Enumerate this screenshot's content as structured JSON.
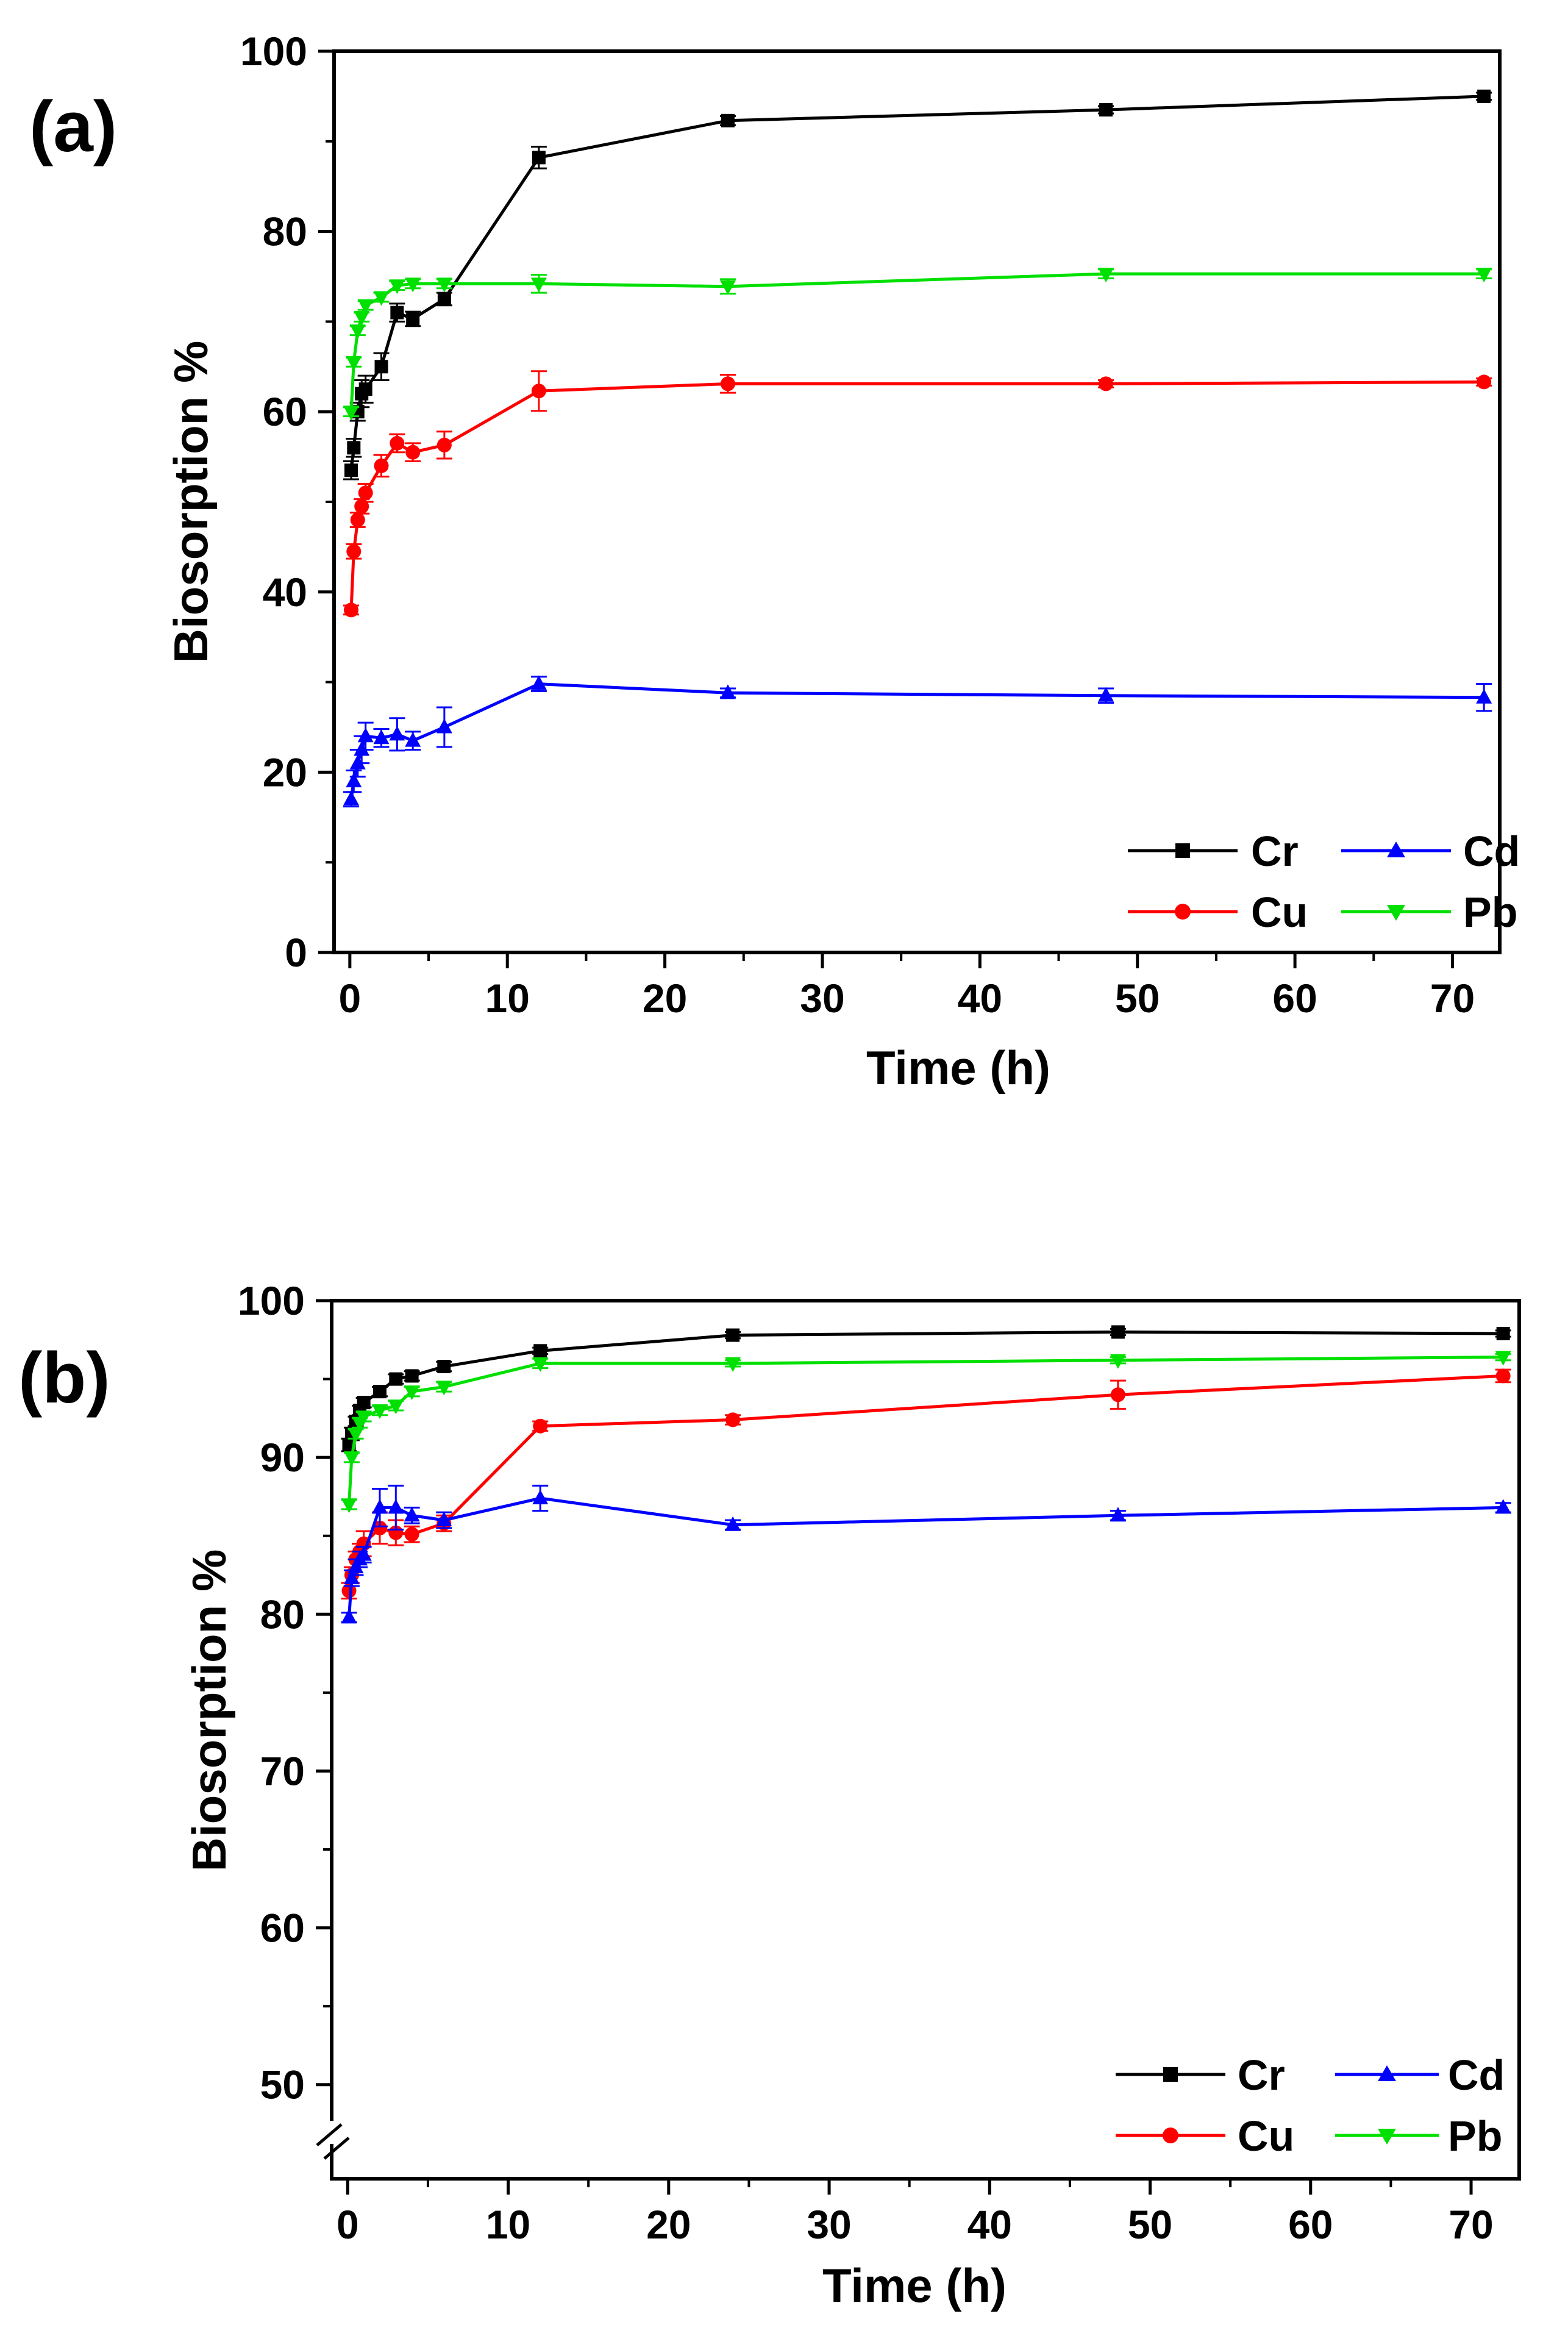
{
  "colors": {
    "Cr": "#000000",
    "Cu": "#ff0000",
    "Cd": "#0000ff",
    "Pb": "#00e000"
  },
  "chart_data": [
    {
      "type": "line",
      "panel_label": "(a)",
      "xlabel": "Time (h)",
      "ylabel": "Biosorption %",
      "xlim": [
        -1,
        73
      ],
      "ylim": [
        0,
        100
      ],
      "xticks": [
        "0",
        "10",
        "20",
        "30",
        "40",
        "50",
        "60",
        "70"
      ],
      "yticks": [
        "0",
        "20",
        "40",
        "60",
        "80",
        "100"
      ],
      "axis_break": false,
      "legend_position": "bottom-right",
      "legend": [
        "Cr",
        "Cd",
        "Cu",
        "Pb"
      ],
      "series": [
        {
          "name": "Cr",
          "marker": "square",
          "x": [
            0.083,
            0.25,
            0.5,
            0.75,
            1,
            2,
            3,
            4,
            6,
            12,
            24,
            48,
            72
          ],
          "y": [
            53.5,
            56,
            60,
            62,
            62.5,
            65,
            71,
            70.3,
            72.5,
            88.2,
            92.3,
            93.5,
            95
          ],
          "err": [
            1,
            1,
            1,
            1.5,
            1.5,
            1.5,
            1,
            0.8,
            0.7,
            1.2,
            0.5,
            0.4,
            0.4
          ]
        },
        {
          "name": "Cu",
          "marker": "circle",
          "x": [
            0.083,
            0.25,
            0.5,
            0.75,
            1,
            2,
            3,
            4,
            6,
            12,
            24,
            48,
            72
          ],
          "y": [
            38,
            44.5,
            48,
            49.5,
            51,
            54,
            56.5,
            55.5,
            56.3,
            62.3,
            63.1,
            63.1,
            63.3
          ],
          "err": [
            0.5,
            0.8,
            0.8,
            0.8,
            1,
            1.2,
            1,
            1,
            1.5,
            2.2,
            1,
            0.4,
            0.4
          ]
        },
        {
          "name": "Cd",
          "marker": "triangle-up",
          "x": [
            0.083,
            0.25,
            0.5,
            0.75,
            1,
            2,
            3,
            4,
            6,
            12,
            24,
            48,
            72
          ],
          "y": [
            17,
            19,
            21,
            22.5,
            24,
            23.8,
            24.2,
            23.5,
            25,
            29.8,
            28.8,
            28.5,
            28.3
          ],
          "err": [
            0.8,
            1.2,
            1.5,
            1.5,
            1.5,
            1,
            1.8,
            1,
            2.2,
            0.8,
            0.5,
            0.8,
            1.5
          ]
        },
        {
          "name": "Pb",
          "marker": "triangle-down",
          "x": [
            0.083,
            0.25,
            0.5,
            0.75,
            1,
            2,
            3,
            4,
            6,
            12,
            24,
            48,
            72
          ],
          "y": [
            60,
            65.5,
            69,
            70.5,
            71.8,
            72.7,
            74,
            74.2,
            74.2,
            74.2,
            73.9,
            75.3,
            75.3
          ],
          "err": [
            0.5,
            0.5,
            0.5,
            0.5,
            0.5,
            0.5,
            0.5,
            0.5,
            0.5,
            1,
            0.8,
            0.5,
            0.5
          ]
        }
      ]
    },
    {
      "type": "line",
      "panel_label": "(b)",
      "xlabel": "Time (h)",
      "ylabel": "Biosorption %",
      "xlim": [
        -1,
        73
      ],
      "ylim": [
        44,
        100
      ],
      "xticks": [
        "0",
        "10",
        "20",
        "30",
        "40",
        "50",
        "60",
        "70"
      ],
      "yticks": [
        "50",
        "60",
        "70",
        "80",
        "90",
        "100"
      ],
      "axis_break": true,
      "legend_position": "bottom-right",
      "legend": [
        "Cr",
        "Cd",
        "Cu",
        "Pb"
      ],
      "series": [
        {
          "name": "Cr",
          "marker": "square",
          "x": [
            0.083,
            0.25,
            0.5,
            0.75,
            1,
            2,
            3,
            4,
            6,
            12,
            24,
            48,
            72
          ],
          "y": [
            90.8,
            91.5,
            92.3,
            93,
            93.5,
            94.2,
            95,
            95.2,
            95.8,
            96.8,
            97.8,
            98,
            97.9
          ],
          "err": [
            0.4,
            0.4,
            0.3,
            0.3,
            0.3,
            0.3,
            0.3,
            0.3,
            0.3,
            0.2,
            0.2,
            0.2,
            0.2
          ]
        },
        {
          "name": "Cu",
          "marker": "circle",
          "x": [
            0.083,
            0.25,
            0.5,
            0.75,
            1,
            2,
            3,
            4,
            6,
            12,
            24,
            48,
            72
          ],
          "y": [
            81.5,
            82.5,
            83.5,
            84,
            84.5,
            85.5,
            85.2,
            85.1,
            85.8,
            92,
            92.4,
            94,
            95.2
          ],
          "err": [
            0.5,
            0.5,
            0.5,
            0.5,
            0.8,
            1,
            0.8,
            0.5,
            0.5,
            0.3,
            0.3,
            0.9,
            0.4
          ]
        },
        {
          "name": "Cd",
          "marker": "triangle-up",
          "x": [
            0.083,
            0.25,
            0.5,
            0.75,
            1,
            2,
            3,
            4,
            6,
            12,
            24,
            48,
            72
          ],
          "y": [
            79.8,
            82.3,
            83,
            83.5,
            83.8,
            86.8,
            86.8,
            86.3,
            86,
            87.4,
            85.7,
            86.3,
            86.8
          ],
          "err": [
            0.3,
            0.5,
            0.5,
            0.5,
            0.5,
            1.2,
            1.4,
            0.5,
            0.5,
            0.8,
            0.3,
            0.3,
            0.3
          ]
        },
        {
          "name": "Pb",
          "marker": "triangle-down",
          "x": [
            0.083,
            0.25,
            0.5,
            0.75,
            1,
            2,
            3,
            4,
            6,
            12,
            24,
            48,
            72
          ],
          "y": [
            87,
            90,
            91.5,
            92.2,
            92.6,
            93,
            93.3,
            94.2,
            94.5,
            96,
            96,
            96.2,
            96.4
          ],
          "err": [
            0.3,
            0.3,
            0.3,
            0.3,
            0.3,
            0.3,
            0.3,
            0.3,
            0.3,
            0.3,
            0.2,
            0.2,
            0.2
          ]
        }
      ]
    }
  ]
}
